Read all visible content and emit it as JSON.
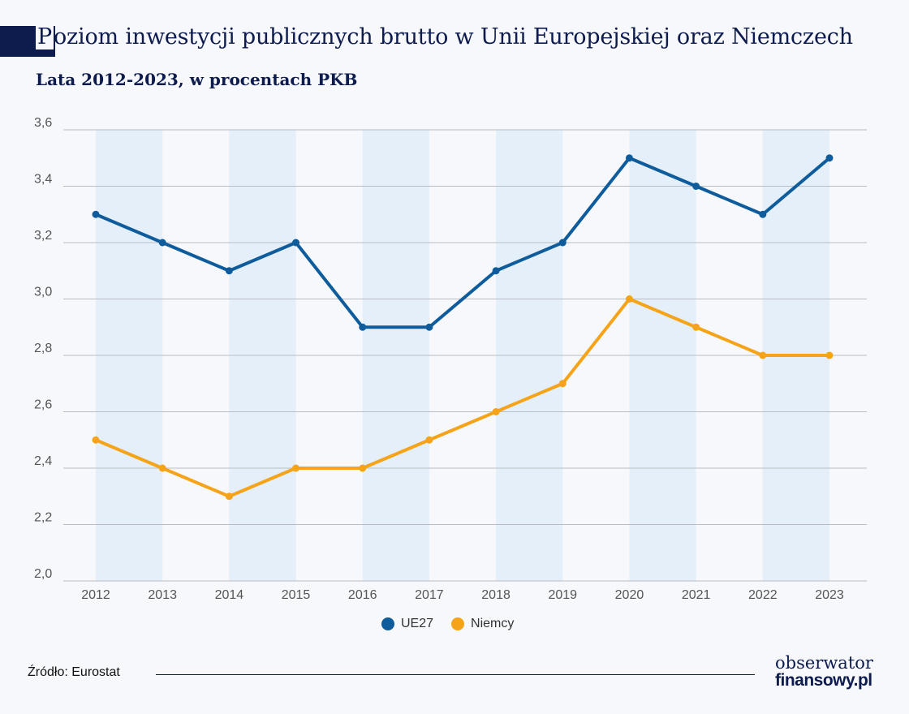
{
  "header": {
    "title_first_letter": "P",
    "title_rest": "oziom inwestycji publicznych brutto w Unii Europejskiej oraz Niemczech",
    "subtitle": "Lata 2012-2023, w procentach PKB"
  },
  "chart_data": {
    "type": "line",
    "title": "Poziom inwestycji publicznych brutto w Unii Europejskiej oraz Niemczech",
    "subtitle": "Lata 2012-2023, w procentach PKB",
    "xlabel": "",
    "ylabel": "",
    "categories": [
      "2012",
      "2013",
      "2014",
      "2015",
      "2016",
      "2017",
      "2018",
      "2019",
      "2020",
      "2021",
      "2022",
      "2023"
    ],
    "series": [
      {
        "name": "UE27",
        "color": "#0f5c9c",
        "values": [
          3.3,
          3.2,
          3.1,
          3.2,
          2.9,
          2.9,
          3.1,
          3.2,
          3.5,
          3.4,
          3.3,
          3.5
        ]
      },
      {
        "name": "Niemcy",
        "color": "#f5a41a",
        "values": [
          2.5,
          2.4,
          2.3,
          2.4,
          2.4,
          2.5,
          2.6,
          2.7,
          3.0,
          2.9,
          2.8,
          2.8
        ]
      }
    ],
    "ylim": [
      2.0,
      3.6
    ],
    "yticks": [
      "2,0",
      "2,2",
      "2,4",
      "2,6",
      "2,8",
      "3,0",
      "3,2",
      "3,4",
      "3,6"
    ],
    "grid": true,
    "band_color": "#e4eff9",
    "legend_position": "bottom-center"
  },
  "footer": {
    "source": "Źródło: Eurostat",
    "logo_line1": "obserwator",
    "logo_line2": "finansowy.pl"
  }
}
